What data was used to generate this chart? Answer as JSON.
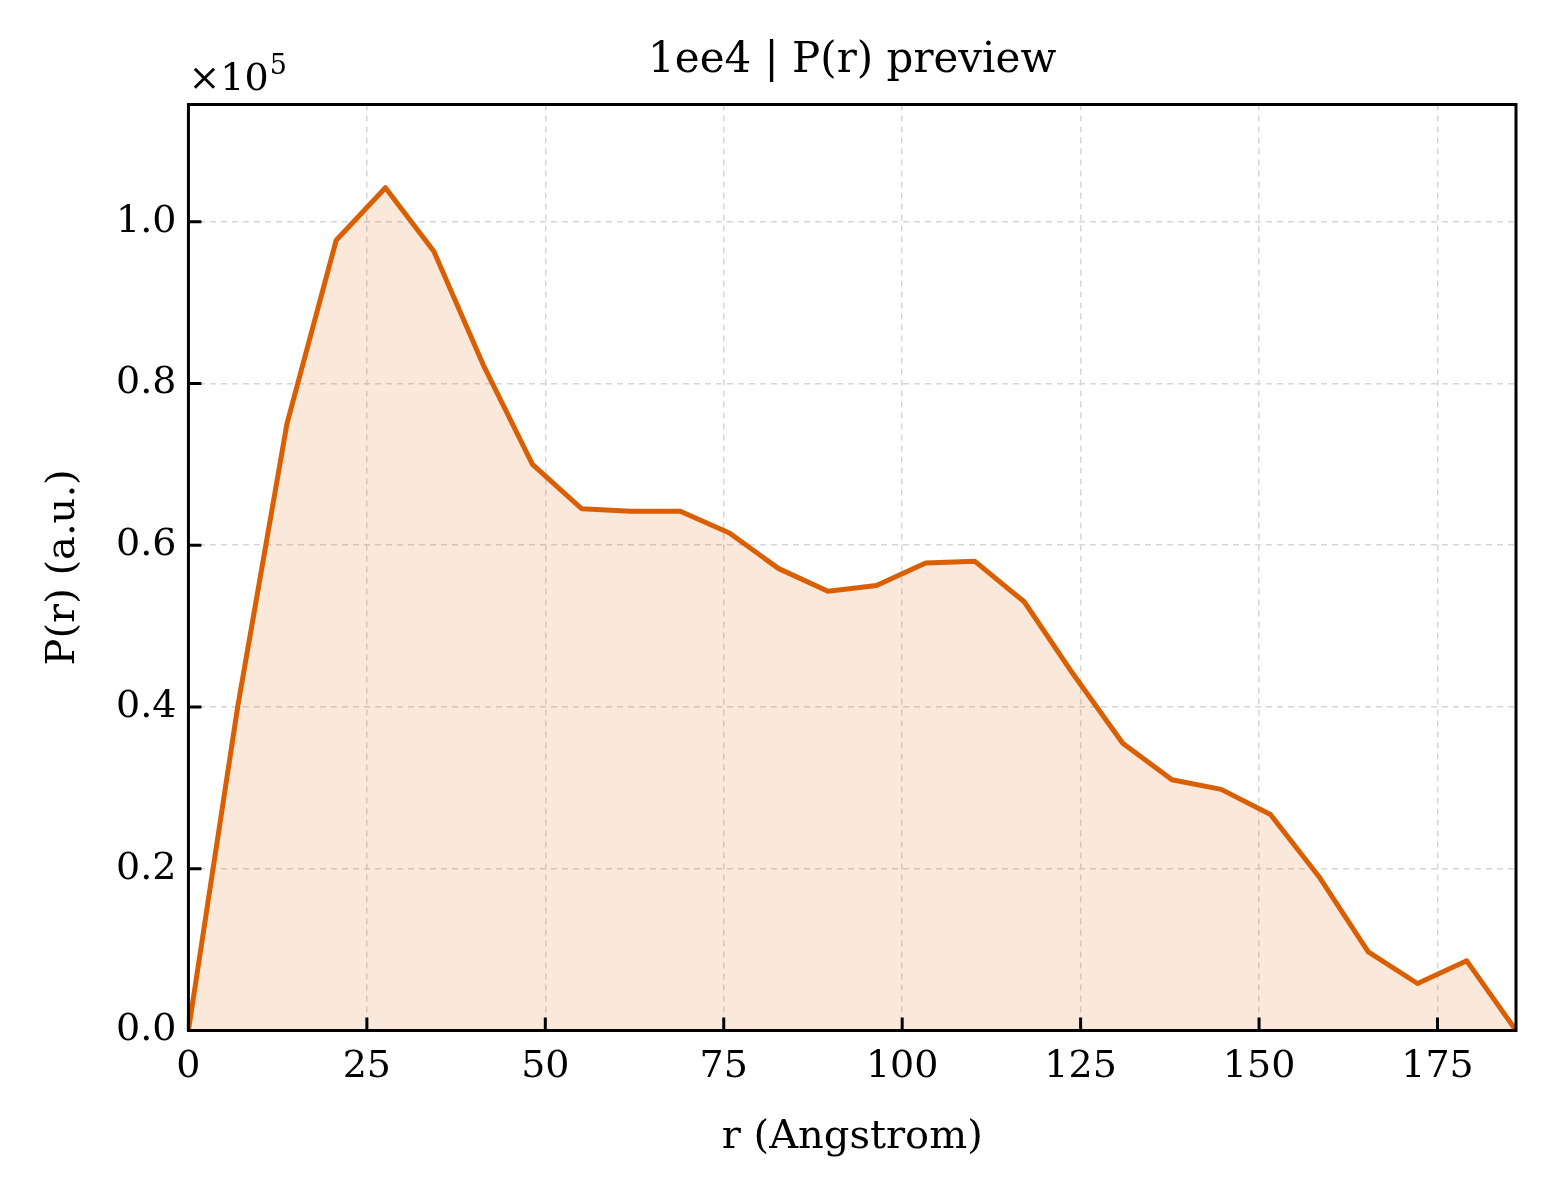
{
  "chart_data": {
    "type": "area",
    "title": "1ee4 | P(r) preview",
    "xlabel": "r (Angstrom)",
    "ylabel": "P(r) (a.u.)",
    "annotations": [
      "×10$^{5}$"
    ],
    "x": [
      0,
      6.9,
      13.8,
      20.7,
      27.6,
      34.4,
      41.3,
      48.2,
      55.1,
      62.0,
      68.9,
      75.8,
      82.7,
      89.6,
      96.4,
      103.3,
      110.2,
      117.1,
      124.0,
      130.9,
      137.8,
      144.7,
      151.6,
      158.4,
      165.3,
      172.2,
      179.1,
      186.0
    ],
    "series": [
      {
        "color": "#d95f02",
        "values": [
          0,
          0.4,
          0.75,
          0.977,
          1.042,
          0.963,
          0.823,
          0.7,
          0.645,
          0.642,
          0.642,
          0.615,
          0.571,
          0.543,
          0.55,
          0.578,
          0.58,
          0.53,
          0.44,
          0.355,
          0.31,
          0.298,
          0.267,
          0.19,
          0.097,
          0.058,
          0.086,
          0
        ]
      }
    ],
    "xlim": [
      0,
      186
    ],
    "xticks": [
      0,
      25,
      50,
      75,
      100,
      125,
      150,
      175
    ],
    "ylim": [
      0,
      1.145
    ],
    "yticks": [
      {
        "value": 0,
        "label": "0.0"
      },
      0.2,
      0.4,
      0.6,
      0.8,
      {
        "value": 1,
        "label": "1.0"
      }
    ],
    "grid": true
  }
}
